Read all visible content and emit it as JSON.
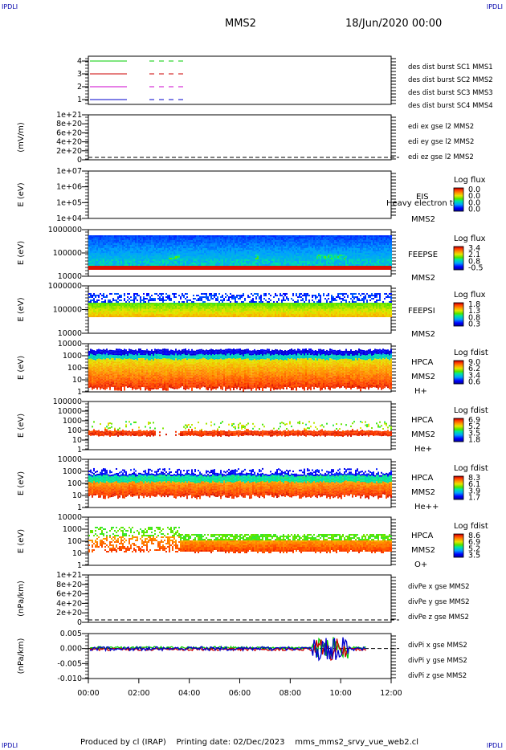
{
  "corners": {
    "top_left": "IPDLI",
    "top_right": "IPDLI",
    "bottom_left": "IPDLI",
    "bottom_right": "IPDLI"
  },
  "header": {
    "spacecraft": "MMS2",
    "date": "18/Jun/2020 00:00"
  },
  "footer": {
    "produced": "Produced by cl (IRAP)",
    "printing": "Printing date: 02/Dec/2023",
    "file": "mms_mms2_srvy_vue_web2.cl"
  },
  "time_axis": {
    "ticks": [
      "00:00",
      "02:00",
      "04:00",
      "06:00",
      "08:00",
      "10:00",
      "12:00"
    ]
  },
  "colors": {
    "red": "#cc0000",
    "green": "#00cc00",
    "blue": "#0000cc",
    "magenta": "#cc00cc"
  },
  "chart_data": [
    {
      "type": "line",
      "ylabel": "",
      "yticks": [
        "1",
        "2",
        "3",
        "4"
      ],
      "legend": [
        {
          "label": "des dist burst SC1 MMS1",
          "color": "#0000cc"
        },
        {
          "label": "des dist burst SC2 MMS2",
          "color": "#cc00cc"
        },
        {
          "label": "des dist burst SC3 MMS3",
          "color": "#cc0000"
        },
        {
          "label": "des dist burst SC4 MMS4",
          "color": "#00cc00"
        }
      ]
    },
    {
      "type": "line",
      "ylabel": "(mV/m)",
      "yticks": [
        "0",
        "2e+20",
        "4e+20",
        "6e+20",
        "8e+20",
        "1e+21"
      ],
      "legend": [
        {
          "label": "edi ex gse l2 MMS2",
          "color": "#cc0000"
        },
        {
          "label": "edi ey gse l2 MMS2",
          "color": "#00cc00"
        },
        {
          "label": "edi ez gse l2 MMS2",
          "color": "#0000cc"
        }
      ]
    },
    {
      "type": "heatmap",
      "ylabel": "E (eV)",
      "yticks": [
        "1e+04",
        "1e+05",
        "1e+06",
        "1e+07"
      ],
      "instrument": "EIS",
      "mms": "MMS2",
      "extra": "Heavy electron to",
      "colorbar": {
        "title": "Log flux",
        "ticks": [
          "0.0",
          "0.0",
          "0.0",
          "0.0"
        ]
      }
    },
    {
      "type": "heatmap",
      "ylabel": "E (eV)",
      "yticks": [
        "10000",
        "100000",
        "1000000"
      ],
      "instrument": "FEEPSE",
      "mms": "MMS2",
      "colorbar": {
        "title": "Log flux",
        "ticks": [
          "3.4",
          "2.1",
          "0.8",
          "-0.5"
        ]
      }
    },
    {
      "type": "heatmap",
      "ylabel": "E (eV)",
      "yticks": [
        "10000",
        "100000",
        "1000000"
      ],
      "instrument": "FEEPSI",
      "mms": "MMS2",
      "colorbar": {
        "title": "Log flux",
        "ticks": [
          "1.8",
          "1.3",
          "0.8",
          "0.3"
        ]
      }
    },
    {
      "type": "heatmap",
      "ylabel": "E (eV)",
      "yticks": [
        "1",
        "10",
        "100",
        "1000",
        "10000"
      ],
      "instrument": "HPCA",
      "mms": "MMS2",
      "species": "H+",
      "colorbar": {
        "title": "Log fdist",
        "ticks": [
          "9.0",
          "6.2",
          "3.4",
          "0.6"
        ]
      }
    },
    {
      "type": "heatmap",
      "ylabel": "E (eV)",
      "yticks": [
        "1",
        "10",
        "100",
        "1000",
        "10000",
        "100000"
      ],
      "instrument": "HPCA",
      "mms": "MMS2",
      "species": "He+",
      "colorbar": {
        "title": "Log fdist",
        "ticks": [
          "6.9",
          "5.2",
          "3.5",
          "1.8"
        ]
      }
    },
    {
      "type": "heatmap",
      "ylabel": "E (eV)",
      "yticks": [
        "1",
        "10",
        "100",
        "1000",
        "10000"
      ],
      "instrument": "HPCA",
      "mms": "MMS2",
      "species": "He++",
      "colorbar": {
        "title": "Log fdist",
        "ticks": [
          "8.3",
          "6.1",
          "3.9",
          "1.7"
        ]
      }
    },
    {
      "type": "heatmap",
      "ylabel": "E (eV)",
      "yticks": [
        "1",
        "10",
        "100",
        "1000",
        "10000"
      ],
      "instrument": "HPCA",
      "mms": "MMS2",
      "species": "O+",
      "colorbar": {
        "title": "Log fdist",
        "ticks": [
          "8.6",
          "6.9",
          "5.2",
          "3.5"
        ]
      }
    },
    {
      "type": "line",
      "ylabel": "(nPa/km)",
      "yticks": [
        "0",
        "2e+20",
        "4e+20",
        "6e+20",
        "8e+20",
        "1e+21"
      ],
      "legend": [
        {
          "label": "divPe x gse MMS2",
          "color": "#cc0000"
        },
        {
          "label": "divPe y gse MMS2",
          "color": "#00cc00"
        },
        {
          "label": "divPe z gse MMS2",
          "color": "#0000cc"
        }
      ]
    },
    {
      "type": "line",
      "ylabel": "(nPa/km)",
      "yticks": [
        "-0.010",
        "-0.005",
        "0.000",
        "0.005"
      ],
      "legend": [
        {
          "label": "divPi x gse MMS2",
          "color": "#cc0000"
        },
        {
          "label": "divPi y gse MMS2",
          "color": "#00cc00"
        },
        {
          "label": "divPi z gse MMS2",
          "color": "#0000cc"
        }
      ]
    }
  ]
}
